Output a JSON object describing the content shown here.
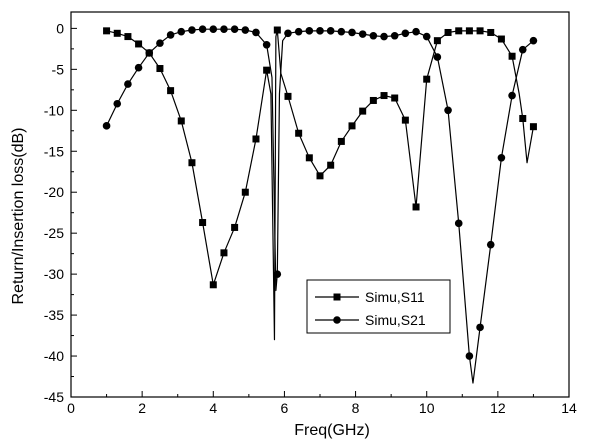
{
  "chart_data": {
    "type": "line",
    "title": "",
    "xlabel": "Freq(GHz)",
    "ylabel": "Return/Insertion loss(dB)",
    "xlim": [
      0,
      14
    ],
    "ylim": [
      -45,
      2
    ],
    "xticks": [
      0,
      2,
      4,
      6,
      8,
      10,
      12,
      14
    ],
    "yticks": [
      0,
      -5,
      -10,
      -15,
      -20,
      -25,
      -30,
      -35,
      -40,
      -45
    ],
    "grid": false,
    "legend_position": "lower-center",
    "series": [
      {
        "name": "Simu,S11",
        "marker": "square",
        "markers": [
          {
            "x": 1.0,
            "y": -0.3
          },
          {
            "x": 1.3,
            "y": -0.6
          },
          {
            "x": 1.6,
            "y": -1.0
          },
          {
            "x": 1.9,
            "y": -1.9
          },
          {
            "x": 2.2,
            "y": -3.0
          },
          {
            "x": 2.5,
            "y": -4.9
          },
          {
            "x": 2.8,
            "y": -7.6
          },
          {
            "x": 3.1,
            "y": -11.3
          },
          {
            "x": 3.4,
            "y": -16.4
          },
          {
            "x": 3.7,
            "y": -23.7
          },
          {
            "x": 4.0,
            "y": -31.3
          },
          {
            "x": 4.3,
            "y": -27.4
          },
          {
            "x": 4.6,
            "y": -24.3
          },
          {
            "x": 4.9,
            "y": -20.0
          },
          {
            "x": 5.2,
            "y": -13.5
          },
          {
            "x": 5.5,
            "y": -5.1
          },
          {
            "x": 5.8,
            "y": -0.2
          },
          {
            "x": 6.1,
            "y": -8.3
          },
          {
            "x": 6.4,
            "y": -12.8
          },
          {
            "x": 6.7,
            "y": -15.8
          },
          {
            "x": 7.0,
            "y": -18.0
          },
          {
            "x": 7.3,
            "y": -16.7
          },
          {
            "x": 7.6,
            "y": -13.8
          },
          {
            "x": 7.9,
            "y": -11.9
          },
          {
            "x": 8.2,
            "y": -10.1
          },
          {
            "x": 8.5,
            "y": -8.8
          },
          {
            "x": 8.8,
            "y": -8.2
          },
          {
            "x": 9.1,
            "y": -8.5
          },
          {
            "x": 9.4,
            "y": -11.2
          },
          {
            "x": 9.7,
            "y": -21.8
          },
          {
            "x": 10.0,
            "y": -6.2
          },
          {
            "x": 10.3,
            "y": -1.5
          },
          {
            "x": 10.6,
            "y": -0.5
          },
          {
            "x": 10.9,
            "y": -0.3
          },
          {
            "x": 11.2,
            "y": -0.3
          },
          {
            "x": 11.5,
            "y": -0.3
          },
          {
            "x": 11.8,
            "y": -0.5
          },
          {
            "x": 12.1,
            "y": -1.3
          },
          {
            "x": 12.4,
            "y": -3.4
          },
          {
            "x": 12.7,
            "y": -11.0
          },
          {
            "x": 13.0,
            "y": -12.0
          }
        ],
        "curve": [
          {
            "x": 1.0,
            "y": -0.3
          },
          {
            "x": 1.3,
            "y": -0.6
          },
          {
            "x": 1.6,
            "y": -1.0
          },
          {
            "x": 1.9,
            "y": -1.9
          },
          {
            "x": 2.2,
            "y": -3.0
          },
          {
            "x": 2.5,
            "y": -4.9
          },
          {
            "x": 2.8,
            "y": -7.6
          },
          {
            "x": 3.1,
            "y": -11.3
          },
          {
            "x": 3.4,
            "y": -16.4
          },
          {
            "x": 3.7,
            "y": -23.7
          },
          {
            "x": 4.0,
            "y": -31.3
          },
          {
            "x": 4.3,
            "y": -27.4
          },
          {
            "x": 4.6,
            "y": -24.3
          },
          {
            "x": 4.9,
            "y": -20.0
          },
          {
            "x": 5.2,
            "y": -13.5
          },
          {
            "x": 5.5,
            "y": -5.1
          },
          {
            "x": 5.62,
            "y": -8.0
          },
          {
            "x": 5.72,
            "y": -38.0
          },
          {
            "x": 5.76,
            "y": -1.0
          },
          {
            "x": 5.8,
            "y": -0.2
          },
          {
            "x": 5.9,
            "y": -5.5
          },
          {
            "x": 6.1,
            "y": -8.3
          },
          {
            "x": 6.4,
            "y": -12.8
          },
          {
            "x": 6.7,
            "y": -15.8
          },
          {
            "x": 7.0,
            "y": -18.0
          },
          {
            "x": 7.3,
            "y": -16.7
          },
          {
            "x": 7.6,
            "y": -13.8
          },
          {
            "x": 7.9,
            "y": -11.9
          },
          {
            "x": 8.2,
            "y": -10.1
          },
          {
            "x": 8.5,
            "y": -8.8
          },
          {
            "x": 8.8,
            "y": -8.2
          },
          {
            "x": 9.1,
            "y": -8.5
          },
          {
            "x": 9.4,
            "y": -11.2
          },
          {
            "x": 9.7,
            "y": -21.8
          },
          {
            "x": 10.0,
            "y": -6.2
          },
          {
            "x": 10.3,
            "y": -1.5
          },
          {
            "x": 10.6,
            "y": -0.5
          },
          {
            "x": 10.9,
            "y": -0.3
          },
          {
            "x": 11.2,
            "y": -0.3
          },
          {
            "x": 11.5,
            "y": -0.3
          },
          {
            "x": 11.8,
            "y": -0.5
          },
          {
            "x": 12.1,
            "y": -1.3
          },
          {
            "x": 12.4,
            "y": -3.4
          },
          {
            "x": 12.6,
            "y": -8.0
          },
          {
            "x": 12.7,
            "y": -11.0
          },
          {
            "x": 12.82,
            "y": -16.4
          },
          {
            "x": 13.0,
            "y": -12.0
          }
        ]
      },
      {
        "name": "Simu,S21",
        "marker": "circle",
        "markers": [
          {
            "x": 1.0,
            "y": -11.9
          },
          {
            "x": 1.3,
            "y": -9.2
          },
          {
            "x": 1.6,
            "y": -6.8
          },
          {
            "x": 1.9,
            "y": -4.8
          },
          {
            "x": 2.2,
            "y": -3.0
          },
          {
            "x": 2.5,
            "y": -1.8
          },
          {
            "x": 2.8,
            "y": -0.8
          },
          {
            "x": 3.1,
            "y": -0.4
          },
          {
            "x": 3.4,
            "y": -0.2
          },
          {
            "x": 3.7,
            "y": -0.1
          },
          {
            "x": 4.0,
            "y": -0.1
          },
          {
            "x": 4.3,
            "y": -0.1
          },
          {
            "x": 4.6,
            "y": -0.1
          },
          {
            "x": 4.9,
            "y": -0.2
          },
          {
            "x": 5.2,
            "y": -0.5
          },
          {
            "x": 5.5,
            "y": -2.0
          },
          {
            "x": 5.8,
            "y": -30.0
          },
          {
            "x": 6.1,
            "y": -0.6
          },
          {
            "x": 6.4,
            "y": -0.4
          },
          {
            "x": 6.7,
            "y": -0.3
          },
          {
            "x": 7.0,
            "y": -0.3
          },
          {
            "x": 7.3,
            "y": -0.3
          },
          {
            "x": 7.6,
            "y": -0.4
          },
          {
            "x": 7.9,
            "y": -0.5
          },
          {
            "x": 8.2,
            "y": -0.7
          },
          {
            "x": 8.5,
            "y": -0.9
          },
          {
            "x": 8.8,
            "y": -1.0
          },
          {
            "x": 9.1,
            "y": -0.9
          },
          {
            "x": 9.4,
            "y": -0.6
          },
          {
            "x": 9.7,
            "y": -0.4
          },
          {
            "x": 10.0,
            "y": -1.0
          },
          {
            "x": 10.3,
            "y": -3.5
          },
          {
            "x": 10.6,
            "y": -10.0
          },
          {
            "x": 10.9,
            "y": -23.8
          },
          {
            "x": 11.2,
            "y": -40.0
          },
          {
            "x": 11.5,
            "y": -36.5
          },
          {
            "x": 11.8,
            "y": -26.4
          },
          {
            "x": 12.1,
            "y": -15.8
          },
          {
            "x": 12.4,
            "y": -8.2
          },
          {
            "x": 12.7,
            "y": -2.6
          },
          {
            "x": 13.0,
            "y": -1.5
          }
        ],
        "curve": [
          {
            "x": 1.0,
            "y": -11.9
          },
          {
            "x": 1.3,
            "y": -9.2
          },
          {
            "x": 1.6,
            "y": -6.8
          },
          {
            "x": 1.9,
            "y": -4.8
          },
          {
            "x": 2.2,
            "y": -3.0
          },
          {
            "x": 2.5,
            "y": -1.8
          },
          {
            "x": 2.8,
            "y": -0.8
          },
          {
            "x": 3.1,
            "y": -0.4
          },
          {
            "x": 3.4,
            "y": -0.2
          },
          {
            "x": 3.7,
            "y": -0.1
          },
          {
            "x": 4.0,
            "y": -0.1
          },
          {
            "x": 4.3,
            "y": -0.1
          },
          {
            "x": 4.6,
            "y": -0.1
          },
          {
            "x": 4.9,
            "y": -0.2
          },
          {
            "x": 5.2,
            "y": -0.5
          },
          {
            "x": 5.5,
            "y": -2.0
          },
          {
            "x": 5.65,
            "y": -6.0
          },
          {
            "x": 5.76,
            "y": -32.0
          },
          {
            "x": 5.8,
            "y": -30.0
          },
          {
            "x": 5.86,
            "y": -8.0
          },
          {
            "x": 5.95,
            "y": -1.5
          },
          {
            "x": 6.1,
            "y": -0.6
          },
          {
            "x": 6.4,
            "y": -0.4
          },
          {
            "x": 6.7,
            "y": -0.3
          },
          {
            "x": 7.0,
            "y": -0.3
          },
          {
            "x": 7.3,
            "y": -0.3
          },
          {
            "x": 7.6,
            "y": -0.4
          },
          {
            "x": 7.9,
            "y": -0.5
          },
          {
            "x": 8.2,
            "y": -0.7
          },
          {
            "x": 8.5,
            "y": -0.9
          },
          {
            "x": 8.8,
            "y": -1.0
          },
          {
            "x": 9.1,
            "y": -0.9
          },
          {
            "x": 9.4,
            "y": -0.6
          },
          {
            "x": 9.7,
            "y": -0.4
          },
          {
            "x": 10.0,
            "y": -1.0
          },
          {
            "x": 10.3,
            "y": -3.5
          },
          {
            "x": 10.6,
            "y": -10.0
          },
          {
            "x": 10.9,
            "y": -23.8
          },
          {
            "x": 11.2,
            "y": -40.0
          },
          {
            "x": 11.3,
            "y": -43.3
          },
          {
            "x": 11.5,
            "y": -36.5
          },
          {
            "x": 11.8,
            "y": -26.4
          },
          {
            "x": 12.1,
            "y": -15.8
          },
          {
            "x": 12.4,
            "y": -8.2
          },
          {
            "x": 12.7,
            "y": -2.6
          },
          {
            "x": 13.0,
            "y": -1.5
          }
        ]
      }
    ]
  }
}
